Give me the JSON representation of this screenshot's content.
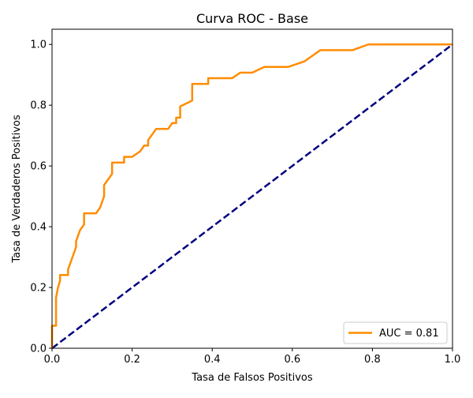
{
  "chart_data": {
    "type": "line",
    "title": "Curva ROC - Base",
    "xlabel": "Tasa de Falsos Positivos",
    "ylabel": "Tasa de Verdaderos Positivos",
    "xlim": [
      0,
      1
    ],
    "ylim": [
      0,
      1.05
    ],
    "xticks": [
      0.0,
      0.2,
      0.4,
      0.6,
      0.8,
      1.0
    ],
    "yticks": [
      0.0,
      0.2,
      0.4,
      0.6,
      0.8,
      1.0
    ],
    "xtick_labels": [
      "0.0",
      "0.2",
      "0.4",
      "0.6",
      "0.8",
      "1.0"
    ],
    "ytick_labels": [
      "0.0",
      "0.2",
      "0.4",
      "0.6",
      "0.8",
      "1.0"
    ],
    "grid": false,
    "legend": {
      "position": "lower-right",
      "entries": [
        "AUC = 0.81"
      ]
    },
    "series": [
      {
        "name": "AUC = 0.81",
        "color": "#ff8c00",
        "style": "solid",
        "x": [
          0.0,
          0.0,
          0.01,
          0.01,
          0.015,
          0.02,
          0.02,
          0.04,
          0.04,
          0.05,
          0.06,
          0.06,
          0.07,
          0.08,
          0.08,
          0.11,
          0.12,
          0.13,
          0.13,
          0.15,
          0.15,
          0.18,
          0.18,
          0.2,
          0.22,
          0.23,
          0.24,
          0.24,
          0.26,
          0.29,
          0.3,
          0.31,
          0.31,
          0.32,
          0.32,
          0.35,
          0.35,
          0.39,
          0.39,
          0.45,
          0.47,
          0.5,
          0.53,
          0.59,
          0.63,
          0.67,
          0.75,
          0.79,
          0.8,
          1.0
        ],
        "y": [
          0.0,
          0.074,
          0.074,
          0.167,
          0.2,
          0.222,
          0.241,
          0.241,
          0.259,
          0.296,
          0.333,
          0.352,
          0.389,
          0.407,
          0.444,
          0.444,
          0.463,
          0.5,
          0.537,
          0.574,
          0.611,
          0.611,
          0.63,
          0.63,
          0.648,
          0.667,
          0.667,
          0.685,
          0.722,
          0.722,
          0.741,
          0.741,
          0.759,
          0.759,
          0.796,
          0.815,
          0.87,
          0.87,
          0.889,
          0.889,
          0.907,
          0.907,
          0.926,
          0.926,
          0.944,
          0.981,
          0.981,
          1.0,
          1.0,
          1.0
        ]
      },
      {
        "color": "#000080",
        "style": "dashed",
        "x": [
          0,
          1
        ],
        "y": [
          0,
          1
        ]
      }
    ]
  }
}
